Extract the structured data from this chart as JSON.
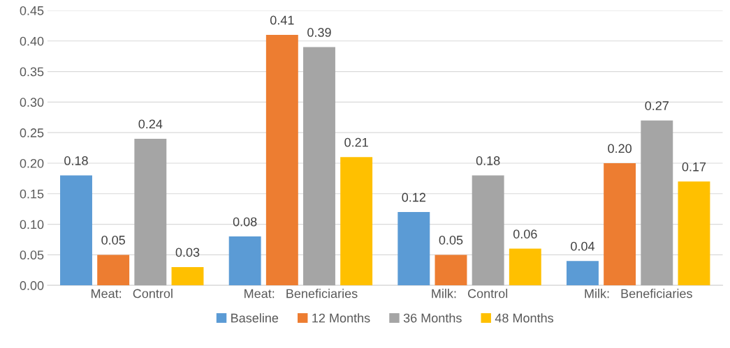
{
  "chart_data": {
    "type": "bar",
    "categories": [
      "Meat:   Control",
      "Meat:   Beneficiaries",
      "Milk:   Control",
      "Milk:   Beneficiaries"
    ],
    "series": [
      {
        "name": "Baseline",
        "color": "#5b9bd5",
        "values": [
          0.18,
          0.08,
          0.12,
          0.04
        ],
        "value_labels": [
          "0.18",
          "0.08",
          "0.12",
          "0.04"
        ]
      },
      {
        "name": "12 Months",
        "color": "#ed7d31",
        "values": [
          0.05,
          0.41,
          0.05,
          0.2
        ],
        "value_labels": [
          "0.05",
          "0.41",
          "0.05",
          "0.20"
        ]
      },
      {
        "name": "36 Months",
        "color": "#a5a5a5",
        "values": [
          0.24,
          0.39,
          0.18,
          0.27
        ],
        "value_labels": [
          "0.24",
          "0.39",
          "0.18",
          "0.27"
        ]
      },
      {
        "name": "48 Months",
        "color": "#ffc000",
        "values": [
          0.03,
          0.21,
          0.06,
          0.17
        ],
        "value_labels": [
          "0.03",
          "0.21",
          "0.06",
          "0.17"
        ]
      }
    ],
    "ylim": [
      0,
      0.45
    ],
    "yticks": [
      {
        "value": 0,
        "label": "0.00"
      },
      {
        "value": 0.05,
        "label": "0.05"
      },
      {
        "value": 0.1,
        "label": "0.10"
      },
      {
        "value": 0.15,
        "label": "0.15"
      },
      {
        "value": 0.2,
        "label": "0.20"
      },
      {
        "value": 0.25,
        "label": "0.25"
      },
      {
        "value": 0.3,
        "label": "0.30"
      },
      {
        "value": 0.35,
        "label": "0.35"
      },
      {
        "value": 0.4,
        "label": "0.40"
      },
      {
        "value": 0.45,
        "label": "0.45"
      }
    ],
    "grid": "y",
    "legend": "bottom"
  }
}
